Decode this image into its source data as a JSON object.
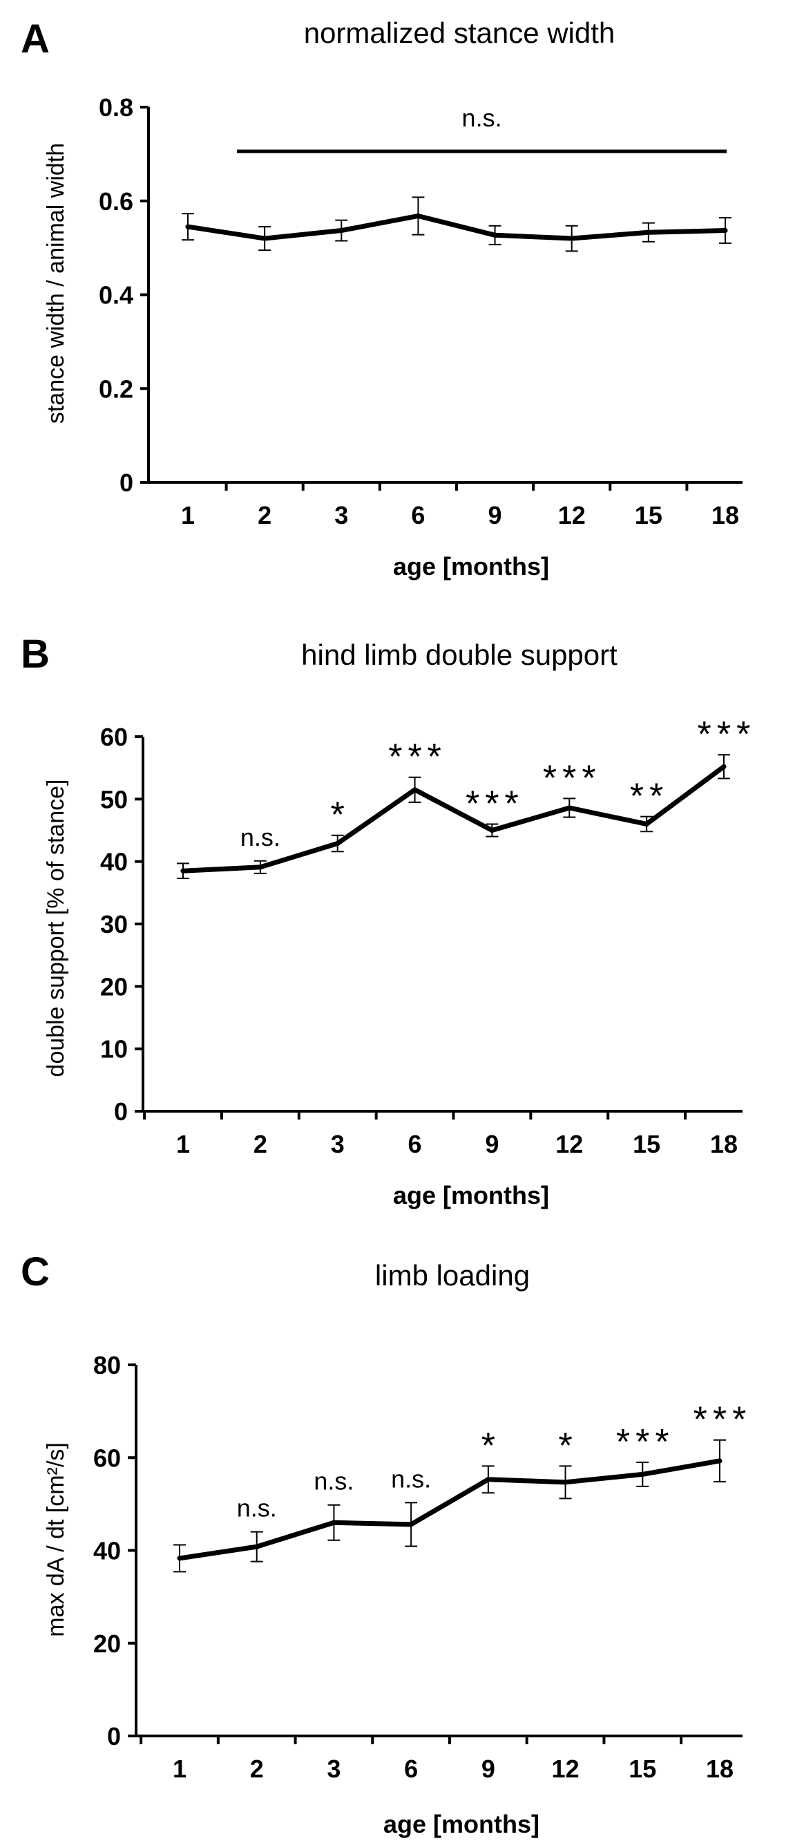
{
  "chart_data": [
    {
      "panel_label": "A",
      "type": "line",
      "title": "normalized stance width",
      "xlabel": "age [months]",
      "ylabel": "stance width / animal width",
      "categories": [
        "1",
        "2",
        "3",
        "6",
        "9",
        "12",
        "15",
        "18"
      ],
      "values": [
        0.545,
        0.52,
        0.537,
        0.568,
        0.527,
        0.52,
        0.533,
        0.537
      ],
      "errors": [
        0.028,
        0.025,
        0.022,
        0.04,
        0.02,
        0.027,
        0.02,
        0.027
      ],
      "ylim": [
        0,
        0.8
      ],
      "yticks": [
        "0",
        "0.2",
        "0.4",
        "0.6",
        "0.8"
      ],
      "ytick_values": [
        0,
        0.2,
        0.4,
        0.6,
        0.8
      ],
      "annotations": [
        {
          "text": "n.s.",
          "kind": "bracket",
          "from_index": 1,
          "to_index": 7
        }
      ]
    },
    {
      "panel_label": "B",
      "type": "line",
      "title": "hind limb double support",
      "xlabel": "age [months]",
      "ylabel": "double support [% of stance]",
      "categories": [
        "1",
        "2",
        "3",
        "6",
        "9",
        "12",
        "15",
        "18"
      ],
      "values": [
        38.5,
        39.1,
        42.9,
        51.5,
        45,
        48.6,
        46,
        55.2
      ],
      "errors": [
        1.2,
        1.0,
        1.3,
        2.0,
        1.0,
        1.5,
        1.2,
        1.9
      ],
      "ylim": [
        0,
        60
      ],
      "yticks": [
        "0",
        "10",
        "20",
        "30",
        "40",
        "50",
        "60"
      ],
      "ytick_values": [
        0,
        10,
        20,
        30,
        40,
        50,
        60
      ],
      "annotations": [
        {
          "text": "n.s.",
          "index": 1
        },
        {
          "text": "*",
          "index": 2
        },
        {
          "text": "***",
          "index": 3
        },
        {
          "text": "***",
          "index": 4
        },
        {
          "text": "***",
          "index": 5
        },
        {
          "text": "**",
          "index": 6
        },
        {
          "text": "***",
          "index": 7
        }
      ]
    },
    {
      "panel_label": "C",
      "type": "line",
      "title": "limb loading",
      "xlabel": "age [months]",
      "ylabel": "max dA / dt [cm²/s]",
      "categories": [
        "1",
        "2",
        "3",
        "6",
        "9",
        "12",
        "15",
        "18"
      ],
      "values": [
        38.3,
        40.8,
        46,
        45.6,
        55.3,
        54.7,
        56.4,
        59.3
      ],
      "errors": [
        2.9,
        3.2,
        3.8,
        4.7,
        2.9,
        3.5,
        2.6,
        4.5
      ],
      "ylim": [
        0,
        80
      ],
      "yticks": [
        "0",
        "20",
        "40",
        "60",
        "80"
      ],
      "ytick_values": [
        0,
        20,
        40,
        60,
        80
      ],
      "annotations": [
        {
          "text": "n.s.",
          "index": 1
        },
        {
          "text": "n.s.",
          "index": 2
        },
        {
          "text": "n.s.",
          "index": 3
        },
        {
          "text": "*",
          "index": 4
        },
        {
          "text": "*",
          "index": 5
        },
        {
          "text": "***",
          "index": 6
        },
        {
          "text": "***",
          "index": 7
        }
      ]
    }
  ]
}
